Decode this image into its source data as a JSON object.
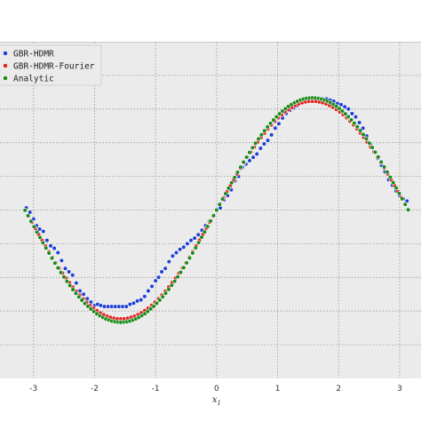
{
  "chart_data": {
    "type": "scatter",
    "xlabel": "x",
    "xlabel_subscript": "1",
    "xlim": [
      -3.55,
      3.35
    ],
    "ylim": [
      -1.5,
      1.5
    ],
    "xticks": [
      -3,
      -2,
      -1,
      0,
      1,
      2,
      3
    ],
    "xtick_labels": [
      "-3",
      "-2",
      "-1",
      "0",
      "1",
      "2",
      "3"
    ],
    "yticks": [
      -1.2,
      -0.9,
      -0.6,
      -0.3,
      0,
      0.3,
      0.6,
      0.9,
      1.2
    ],
    "grid": true,
    "legend_position": "top-left",
    "series": [
      {
        "name": "GBR-HDMR",
        "color": "#1f3fd6",
        "marker": "circle",
        "points": [
          [
            -3.12,
            0.02
          ],
          [
            -3.06,
            -0.02
          ],
          [
            -3.0,
            -0.08
          ],
          [
            -2.95,
            -0.14
          ],
          [
            -2.9,
            -0.17
          ],
          [
            -2.84,
            -0.19
          ],
          [
            -2.78,
            -0.27
          ],
          [
            -2.72,
            -0.32
          ],
          [
            -2.66,
            -0.34
          ],
          [
            -2.6,
            -0.38
          ],
          [
            -2.54,
            -0.45
          ],
          [
            -2.48,
            -0.52
          ],
          [
            -2.42,
            -0.55
          ],
          [
            -2.36,
            -0.58
          ],
          [
            -2.3,
            -0.65
          ],
          [
            -2.24,
            -0.72
          ],
          [
            -2.18,
            -0.75
          ],
          [
            -2.12,
            -0.79
          ],
          [
            -2.06,
            -0.82
          ],
          [
            -2.0,
            -0.85
          ],
          [
            -1.95,
            -0.84
          ],
          [
            -1.9,
            -0.85
          ],
          [
            -1.84,
            -0.86
          ],
          [
            -1.78,
            -0.86
          ],
          [
            -1.72,
            -0.86
          ],
          [
            -1.66,
            -0.86
          ],
          [
            -1.6,
            -0.86
          ],
          [
            -1.54,
            -0.86
          ],
          [
            -1.48,
            -0.86
          ],
          [
            -1.42,
            -0.84
          ],
          [
            -1.36,
            -0.83
          ],
          [
            -1.3,
            -0.81
          ],
          [
            -1.24,
            -0.8
          ],
          [
            -1.18,
            -0.77
          ],
          [
            -1.12,
            -0.72
          ],
          [
            -1.06,
            -0.68
          ],
          [
            -1.0,
            -0.63
          ],
          [
            -0.95,
            -0.6
          ],
          [
            -0.9,
            -0.55
          ],
          [
            -0.84,
            -0.52
          ],
          [
            -0.78,
            -0.46
          ],
          [
            -0.72,
            -0.41
          ],
          [
            -0.66,
            -0.38
          ],
          [
            -0.6,
            -0.35
          ],
          [
            -0.54,
            -0.33
          ],
          [
            -0.48,
            -0.3
          ],
          [
            -0.42,
            -0.27
          ],
          [
            -0.36,
            -0.25
          ],
          [
            -0.3,
            -0.22
          ],
          [
            -0.24,
            -0.18
          ],
          [
            -0.18,
            -0.14
          ],
          [
            -0.12,
            -0.1
          ],
          [
            -0.06,
            -0.05
          ],
          [
            0.0,
            0.0
          ],
          [
            0.06,
            0.02
          ],
          [
            0.12,
            0.09
          ],
          [
            0.18,
            0.13
          ],
          [
            0.24,
            0.18
          ],
          [
            0.3,
            0.26
          ],
          [
            0.36,
            0.3
          ],
          [
            0.42,
            0.38
          ],
          [
            0.48,
            0.41
          ],
          [
            0.54,
            0.44
          ],
          [
            0.6,
            0.47
          ],
          [
            0.66,
            0.5
          ],
          [
            0.72,
            0.55
          ],
          [
            0.78,
            0.59
          ],
          [
            0.84,
            0.62
          ],
          [
            0.9,
            0.67
          ],
          [
            0.96,
            0.73
          ],
          [
            1.02,
            0.77
          ],
          [
            1.08,
            0.82
          ],
          [
            1.14,
            0.86
          ],
          [
            1.2,
            0.89
          ],
          [
            1.26,
            0.91
          ],
          [
            1.32,
            0.93
          ],
          [
            1.38,
            0.96
          ],
          [
            1.44,
            0.98
          ],
          [
            1.5,
            0.99
          ],
          [
            1.56,
            0.99
          ],
          [
            1.62,
            0.99
          ],
          [
            1.68,
            0.99
          ],
          [
            1.74,
            0.99
          ],
          [
            1.8,
            0.99
          ],
          [
            1.86,
            0.98
          ],
          [
            1.92,
            0.97
          ],
          [
            1.98,
            0.95
          ],
          [
            2.04,
            0.94
          ],
          [
            2.1,
            0.92
          ],
          [
            2.16,
            0.9
          ],
          [
            2.22,
            0.86
          ],
          [
            2.28,
            0.83
          ],
          [
            2.34,
            0.78
          ],
          [
            2.4,
            0.73
          ],
          [
            2.46,
            0.66
          ],
          [
            2.52,
            0.59
          ],
          [
            2.58,
            0.52
          ],
          [
            2.64,
            0.46
          ],
          [
            2.7,
            0.4
          ],
          [
            2.76,
            0.34
          ],
          [
            2.82,
            0.27
          ],
          [
            2.88,
            0.22
          ],
          [
            2.94,
            0.17
          ],
          [
            3.0,
            0.13
          ],
          [
            3.06,
            0.1
          ],
          [
            3.12,
            0.08
          ]
        ]
      },
      {
        "name": "GBR-HDMR-Fourier",
        "color": "#e02020",
        "marker": "circle",
        "curve": {
          "amplitude": 0.97,
          "n_points": 113,
          "xmin": -3.14,
          "xmax": 3.14
        }
      },
      {
        "name": "Analytic",
        "color": "#1a8a1a",
        "marker": "circle",
        "curve": {
          "amplitude": 1.0,
          "n_points": 129,
          "xmin": -3.14,
          "xmax": 3.14
        }
      }
    ]
  }
}
